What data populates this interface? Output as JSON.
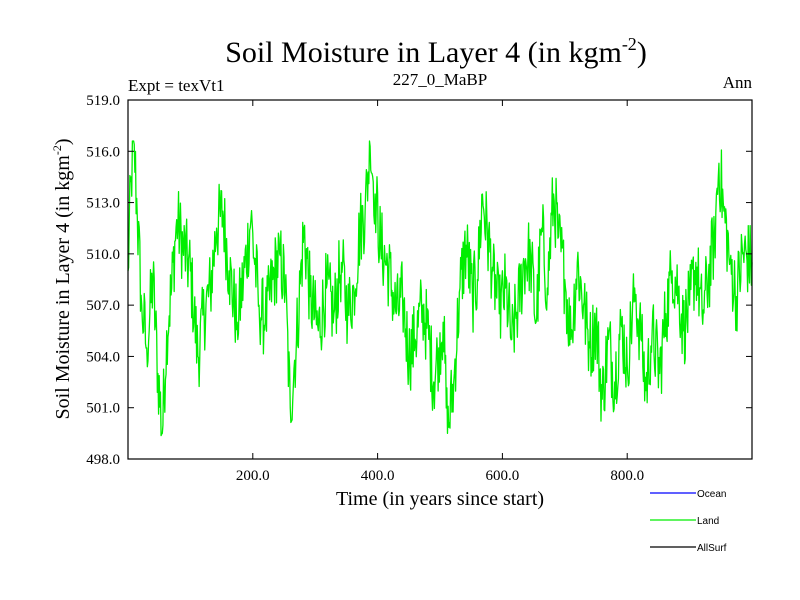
{
  "chart_data": {
    "type": "line",
    "title": "Soil Moisture in Layer 4 (in kgm",
    "title_sup": "-2",
    "title_close": ")",
    "subtitle_left": "Expt = texVt1",
    "subtitle_center": "227_0_MaBP",
    "subtitle_right": "Ann",
    "xlabel": "Time (in years since start)",
    "ylabel": "Soil Moisture in Layer 4 (in kgm",
    "ylabel_sup": "-2",
    "ylabel_close": ")",
    "xlim": [
      0,
      1000
    ],
    "ylim": [
      498.0,
      519.0
    ],
    "x_ticks": [
      200,
      400,
      600,
      800
    ],
    "x_tick_labels": [
      "200.0",
      "400.0",
      "600.0",
      "800.0"
    ],
    "y_ticks": [
      498,
      501,
      504,
      507,
      510,
      513,
      516,
      519
    ],
    "y_tick_labels": [
      "498.0",
      "501.0",
      "504.0",
      "507.0",
      "510.0",
      "513.0",
      "516.0",
      "519.0"
    ],
    "legend": [
      {
        "name": "Ocean",
        "color": "#0000ff"
      },
      {
        "name": "Land",
        "color": "#00ee00"
      },
      {
        "name": "AllSurf",
        "color": "#000000"
      }
    ],
    "series": [
      {
        "name": "Land",
        "color": "#00ee00",
        "anchors": [
          [
            0,
            509.0
          ],
          [
            5,
            514.5
          ],
          [
            10,
            516.4
          ],
          [
            15,
            512.0
          ],
          [
            22,
            507.0
          ],
          [
            30,
            504.5
          ],
          [
            40,
            508.5
          ],
          [
            48,
            503.0
          ],
          [
            55,
            499.5
          ],
          [
            62,
            505.5
          ],
          [
            70,
            508.0
          ],
          [
            78,
            512.0
          ],
          [
            88,
            510.5
          ],
          [
            100,
            509.0
          ],
          [
            112,
            504.0
          ],
          [
            122,
            506.5
          ],
          [
            132,
            508.0
          ],
          [
            142,
            511.5
          ],
          [
            152,
            512.5
          ],
          [
            162,
            509.0
          ],
          [
            175,
            506.0
          ],
          [
            185,
            508.5
          ],
          [
            197,
            512.0
          ],
          [
            210,
            507.0
          ],
          [
            220,
            506.0
          ],
          [
            232,
            508.5
          ],
          [
            243,
            510.0
          ],
          [
            252,
            508.0
          ],
          [
            260,
            501.0
          ],
          [
            270,
            505.0
          ],
          [
            282,
            511.5
          ],
          [
            292,
            507.5
          ],
          [
            305,
            505.5
          ],
          [
            318,
            508.0
          ],
          [
            330,
            506.5
          ],
          [
            342,
            509.5
          ],
          [
            352,
            506.5
          ],
          [
            362,
            508.0
          ],
          [
            372,
            511.5
          ],
          [
            380,
            512.5
          ],
          [
            388,
            516.3
          ],
          [
            396,
            513.5
          ],
          [
            405,
            510.5
          ],
          [
            418,
            509.0
          ],
          [
            430,
            506.5
          ],
          [
            440,
            507.5
          ],
          [
            450,
            504.0
          ],
          [
            460,
            505.0
          ],
          [
            472,
            507.0
          ],
          [
            482,
            505.0
          ],
          [
            490,
            502.5
          ],
          [
            498,
            504.5
          ],
          [
            505,
            506.0
          ],
          [
            512,
            499.5
          ],
          [
            522,
            502.5
          ],
          [
            532,
            508.0
          ],
          [
            542,
            510.5
          ],
          [
            552,
            507.5
          ],
          [
            560,
            508.5
          ],
          [
            568,
            513.5
          ],
          [
            576,
            511.0
          ],
          [
            585,
            509.0
          ],
          [
            595,
            506.5
          ],
          [
            605,
            508.0
          ],
          [
            615,
            505.0
          ],
          [
            625,
            507.0
          ],
          [
            635,
            509.5
          ],
          [
            645,
            510.0
          ],
          [
            654,
            506.0
          ],
          [
            663,
            511.5
          ],
          [
            672,
            508.0
          ],
          [
            682,
            513.5
          ],
          [
            690,
            511.0
          ],
          [
            700,
            508.5
          ],
          [
            710,
            505.0
          ],
          [
            720,
            509.5
          ],
          [
            730,
            507.0
          ],
          [
            740,
            504.5
          ],
          [
            750,
            506.0
          ],
          [
            760,
            501.5
          ],
          [
            770,
            505.0
          ],
          [
            780,
            502.5
          ],
          [
            790,
            506.0
          ],
          [
            800,
            503.5
          ],
          [
            812,
            508.0
          ],
          [
            822,
            505.0
          ],
          [
            830,
            502.0
          ],
          [
            840,
            505.5
          ],
          [
            852,
            503.0
          ],
          [
            862,
            506.5
          ],
          [
            872,
            509.0
          ],
          [
            882,
            508.0
          ],
          [
            890,
            505.5
          ],
          [
            900,
            507.0
          ],
          [
            910,
            509.5
          ],
          [
            920,
            506.5
          ],
          [
            930,
            508.5
          ],
          [
            940,
            511.0
          ],
          [
            947,
            515.3
          ],
          [
            955,
            512.5
          ],
          [
            965,
            509.5
          ],
          [
            975,
            507.5
          ],
          [
            985,
            510.0
          ],
          [
            1000,
            509.5
          ]
        ]
      }
    ]
  }
}
